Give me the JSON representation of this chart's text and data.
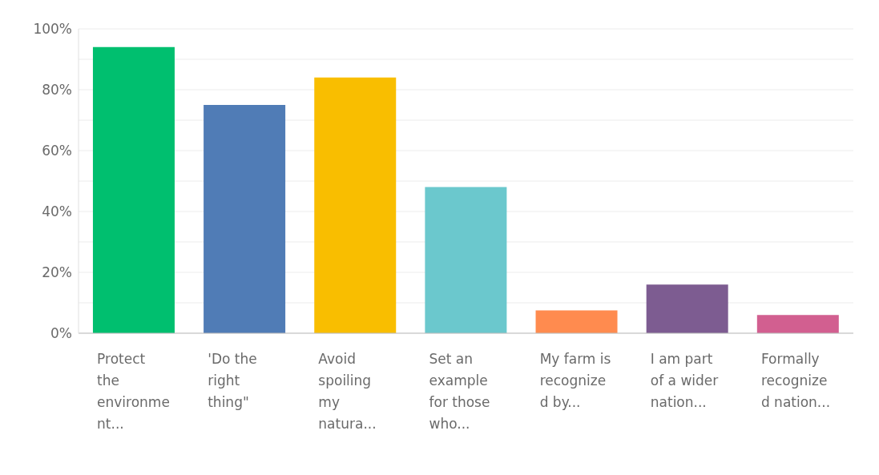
{
  "chart_data": {
    "type": "bar",
    "categories": [
      "Protect the environment...",
      "'Do the right thing\"",
      "Avoid spoiling my natura...",
      "Set an example for those who...",
      "My farm is recognized by...",
      "I am part of a wider nation...",
      "Formally recognized nation..."
    ],
    "values": [
      94,
      75,
      84,
      48,
      7.5,
      16,
      6
    ],
    "colors": [
      "#00bf6f",
      "#507cb6",
      "#f9be00",
      "#6bc8cd",
      "#ff8b4f",
      "#7d5c91",
      "#d25f90"
    ],
    "ylim": [
      0,
      100
    ],
    "yticks": [
      {
        "value": 0,
        "label": "0%"
      },
      {
        "value": 10,
        "label": null
      },
      {
        "value": 20,
        "label": "20%"
      },
      {
        "value": 30,
        "label": null
      },
      {
        "value": 40,
        "label": "40%"
      },
      {
        "value": 50,
        "label": null
      },
      {
        "value": 60,
        "label": "60%"
      },
      {
        "value": 70,
        "label": null
      },
      {
        "value": 80,
        "label": "80%"
      },
      {
        "value": 90,
        "label": null
      },
      {
        "value": 100,
        "label": "100%"
      }
    ],
    "grid": "y"
  }
}
